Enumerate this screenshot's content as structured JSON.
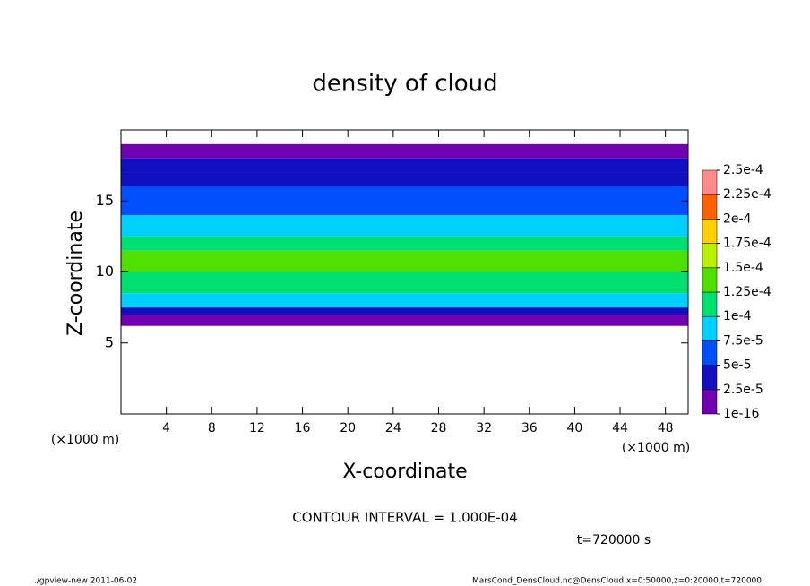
{
  "chart_data": {
    "type": "contour",
    "title": "density of cloud",
    "x_label": "X-coordinate",
    "y_label": "Z-coordinate",
    "x_unit_label": "(×1000 m)",
    "y_unit_label": "(×1000 m)",
    "xlim": [
      0,
      50
    ],
    "xticks": [
      4,
      8,
      12,
      16,
      20,
      24,
      28,
      32,
      36,
      40,
      44,
      48
    ],
    "ylim": [
      0,
      20
    ],
    "yticks": [
      5,
      10,
      15
    ],
    "z": [
      6.2,
      7,
      7.5,
      8.5,
      10,
      11.5,
      12.5,
      14,
      16,
      17,
      18
    ],
    "values": [
      1e-05,
      3e-05,
      9e-05,
      0.00011,
      0.000135,
      0.000105,
      8e-05,
      6e-05,
      4e-05,
      3e-05,
      1e-05
    ],
    "z_top": 19,
    "colorbar_ticks": [
      {
        "value": 1e-16,
        "label": "1e-16"
      },
      {
        "value": 2.5e-05,
        "label": "2.5e-5"
      },
      {
        "value": 5e-05,
        "label": "5e-5"
      },
      {
        "value": 7.5e-05,
        "label": "7.5e-5"
      },
      {
        "value": 0.0001,
        "label": "1e-4"
      },
      {
        "value": 0.000125,
        "label": "1.25e-4"
      },
      {
        "value": 0.00015,
        "label": "1.5e-4"
      },
      {
        "value": 0.000175,
        "label": "1.75e-4"
      },
      {
        "value": 0.0002,
        "label": "2e-4"
      },
      {
        "value": 0.000225,
        "label": "2.25e-4"
      },
      {
        "value": 0.00025,
        "label": "2.5e-4"
      }
    ],
    "colorbar_colors": [
      "#7000b0",
      "#1010c0",
      "#0050ff",
      "#00d0ff",
      "#00e070",
      "#50e000",
      "#b8f000",
      "#ffd000",
      "#ff6000",
      "#ff8a8a"
    ],
    "contour_interval": "CONTOUR INTERVAL = 1.000E-04",
    "time_label": "t=720000 s",
    "footer_left": "./gpview-new  2011-06-02",
    "footer_right": "MarsCond_DensCloud.nc@DensCloud,x=0:50000,z=0:20000,t=720000"
  }
}
